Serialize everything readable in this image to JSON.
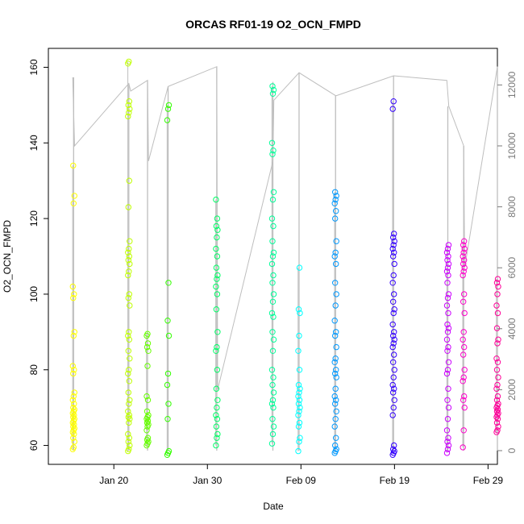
{
  "chart_data": {
    "type": "scatter",
    "title": "ORCAS RF01-19 O2_OCN_FMPD",
    "xlabel": "Date",
    "ylabel": "O2_OCN_FMPD",
    "xlim": [
      "2016-01-13",
      "2016-03-01"
    ],
    "ylim": [
      55,
      165
    ],
    "y2lim": [
      -450,
      13200
    ],
    "x_ticks": [
      {
        "date": "2016-01-20",
        "label": "Jan 20"
      },
      {
        "date": "2016-01-30",
        "label": "Jan 30"
      },
      {
        "date": "2016-02-09",
        "label": "Feb 09"
      },
      {
        "date": "2016-02-19",
        "label": "Feb 19"
      },
      {
        "date": "2016-02-29",
        "label": "Feb 29"
      }
    ],
    "y_ticks": [
      60,
      80,
      100,
      120,
      140,
      160
    ],
    "y2_ticks": [
      0,
      2000,
      4000,
      6000,
      8000,
      10000,
      12000
    ],
    "altitude_color": "#bebebe",
    "flights": [
      {
        "date": "2016-01-15.7",
        "color": "#ffff00",
        "min": 59,
        "max": 134,
        "values": [
          59,
          59.5,
          61,
          62,
          63,
          63.5,
          64,
          64.5,
          65,
          65.5,
          66,
          66.5,
          67,
          67.5,
          68,
          68.5,
          69,
          69.5,
          70,
          71,
          72,
          73,
          74,
          79,
          80,
          81,
          89,
          90,
          99,
          100,
          102,
          124,
          126,
          134
        ],
        "alt_top": 12250
      },
      {
        "date": "2016-01-21.6",
        "color": "#bfff00",
        "min": 58.5,
        "max": 161.5,
        "values": [
          58.5,
          59,
          60,
          61,
          62,
          63,
          66,
          67,
          67.5,
          68,
          69,
          71,
          72,
          74,
          77,
          79,
          80,
          83,
          85,
          88,
          89,
          90,
          97,
          99,
          100,
          105,
          106,
          108,
          109,
          110,
          111,
          112,
          114,
          123,
          130,
          147,
          148,
          149,
          150,
          151,
          161,
          161.5
        ],
        "alt_top": 12050
      },
      {
        "date": "2016-01-23.6",
        "color": "#66ff00",
        "min": 60,
        "max": 89.5,
        "values": [
          60,
          60.5,
          61,
          61.5,
          62,
          64,
          65,
          65.5,
          66,
          66.5,
          67,
          67.5,
          68,
          69,
          72,
          73,
          81,
          85,
          86,
          87,
          89,
          89.5
        ],
        "alt_top": 12150
      },
      {
        "date": "2016-01-25.8",
        "color": "#33ff00",
        "min": 57.5,
        "max": 150,
        "values": [
          57.5,
          58,
          58.5,
          67,
          71,
          76,
          79,
          89,
          93,
          103,
          146,
          149,
          150
        ],
        "alt_top": 11950
      },
      {
        "date": "2016-01-31.0",
        "color": "#00ff66",
        "min": 60,
        "max": 125,
        "values": [
          60,
          62,
          63,
          65,
          67,
          68,
          70,
          72,
          75,
          80,
          85,
          86,
          90,
          96,
          100,
          102,
          104,
          105,
          107,
          110,
          112,
          115,
          117,
          118,
          120,
          125
        ],
        "alt_top": 12600
      },
      {
        "date": "2016-02-06.0",
        "color": "#00ff99",
        "min": 60.5,
        "max": 155,
        "values": [
          60.5,
          63,
          65,
          67,
          70,
          71,
          72,
          74,
          76,
          78,
          80,
          85,
          88,
          90,
          94,
          95,
          98,
          100,
          103,
          105,
          108,
          110,
          111,
          114,
          118,
          120,
          125,
          127,
          137,
          138,
          140,
          153,
          154,
          155
        ],
        "alt_top": 12100
      },
      {
        "date": "2016-02-08.8",
        "color": "#00ffff",
        "min": 58.5,
        "max": 107,
        "values": [
          58.5,
          61,
          62,
          65,
          66,
          68,
          69,
          70,
          71,
          72,
          73,
          74,
          75,
          76,
          80,
          85,
          89,
          95,
          96,
          107
        ],
        "alt_top": 12400
      },
      {
        "date": "2016-02-12.7",
        "color": "#0099ff",
        "min": 58,
        "max": 127,
        "values": [
          58,
          58.5,
          59,
          60,
          62,
          65,
          67,
          69,
          71,
          72,
          73,
          75,
          78,
          79,
          80,
          82,
          83,
          86,
          89,
          90,
          93,
          97,
          100,
          103,
          108,
          110,
          111,
          114,
          120,
          122,
          124,
          125,
          126,
          127
        ],
        "alt_top": 11650
      },
      {
        "date": "2016-02-18.9",
        "color": "#3300ff",
        "min": 57.5,
        "max": 151,
        "values": [
          57.5,
          58,
          58.5,
          59,
          60,
          68,
          70,
          72,
          74,
          75,
          76,
          78,
          80,
          82,
          84,
          86,
          87,
          88,
          89,
          90,
          92,
          95,
          96,
          98,
          100,
          103,
          105,
          108,
          110,
          111,
          112,
          113,
          114,
          115,
          116,
          149,
          151
        ],
        "alt_top": 12300
      },
      {
        "date": "2016-02-24.7",
        "color": "#cc00ff",
        "min": 58,
        "max": 113,
        "values": [
          58,
          59,
          60,
          61,
          62,
          64,
          67,
          70,
          72,
          75,
          79,
          80,
          82,
          85,
          86,
          88,
          90,
          91,
          92,
          95,
          97,
          99,
          100,
          103,
          105,
          106,
          107,
          108,
          109,
          110,
          111,
          112,
          113
        ],
        "alt_top": 11300
      },
      {
        "date": "2016-02-26.4",
        "color": "#ff00cc",
        "min": 59.5,
        "max": 114,
        "values": [
          59.5,
          64,
          70,
          72,
          73,
          77,
          78,
          80,
          84,
          86,
          88,
          90,
          95,
          98,
          100,
          105,
          106,
          107,
          108,
          109,
          110,
          111,
          112,
          113,
          114
        ],
        "alt_top": 10000
      },
      {
        "date": "2016-03-01.0",
        "color": "#ff0099",
        "min": 63.5,
        "max": 104,
        "values": [
          63.5,
          64,
          65,
          66,
          67,
          67.5,
          68,
          68.5,
          69,
          69.5,
          70,
          70.5,
          71,
          72,
          73,
          75,
          76,
          78,
          80,
          82,
          83,
          87,
          88,
          91,
          95,
          97,
          100,
          102,
          103,
          104
        ],
        "alt_top": 12600
      }
    ],
    "altitude_track": [
      [
        "2016-01-15.6",
        12250
      ],
      [
        "2016-01-15.8",
        10000
      ],
      [
        "2016-01-21.6",
        12050
      ],
      [
        "2016-01-21.8",
        11800
      ],
      [
        "2016-01-23.6",
        12150
      ],
      [
        "2016-01-23.7",
        9500
      ],
      [
        "2016-01-25.8",
        11950
      ],
      [
        "2016-01-31.0",
        12600
      ],
      [
        "2016-01-31.1",
        2000
      ],
      [
        "2016-02-06.0",
        9500
      ],
      [
        "2016-02-06.1",
        11500
      ],
      [
        "2016-02-08.8",
        12400
      ],
      [
        "2016-02-12.7",
        11650
      ],
      [
        "2016-02-12.8",
        11650
      ],
      [
        "2016-02-18.9",
        12300
      ],
      [
        "2016-02-24.6",
        12150
      ],
      [
        "2016-02-24.8",
        11300
      ],
      [
        "2016-02-26.4",
        10000
      ],
      [
        "2016-02-26.5",
        6000
      ],
      [
        "2016-03-01.0",
        12600
      ]
    ]
  }
}
